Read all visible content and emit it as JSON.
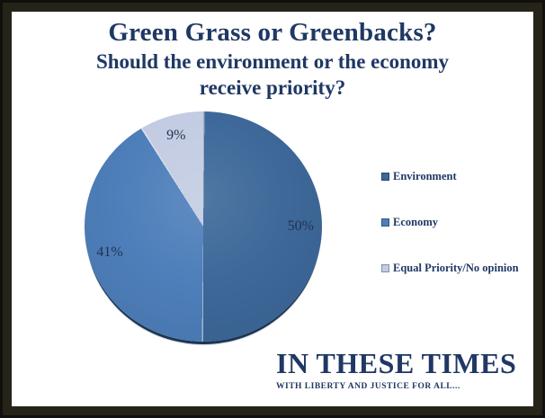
{
  "title": {
    "main": "Green Grass or Greenbacks?",
    "sub_line1": "Should the environment or the economy",
    "sub_line2": "receive priority?"
  },
  "chart_data": {
    "type": "pie",
    "title": "Green Grass or Greenbacks? Should the environment or the economy receive priority?",
    "start_angle_deg": 0,
    "direction": "clockwise",
    "legend_position": "right",
    "label_color": "#1F3350",
    "slices": [
      {
        "name": "Environment",
        "value": 50,
        "label": "50%",
        "color": "#3D6899",
        "swatch_border": "#24466C"
      },
      {
        "name": "Economy",
        "value": 41,
        "label": "41%",
        "color": "#4E7FBA",
        "swatch_border": "#2C5680"
      },
      {
        "name": "Equal Priority/No opinion",
        "value": 9,
        "label": "9%",
        "color": "#C3CCE2",
        "swatch_border": "#8491AF"
      }
    ]
  },
  "branding": {
    "name": "IN THESE TIMES",
    "tagline": "WITH LIBERTY AND JUSTICE FOR ALL..."
  },
  "colors": {
    "navy_text": "#1F3864",
    "pie_label": "#1F3350",
    "frame_outer": "#11100A",
    "frame_inner": "#262419",
    "background": "#FFFFFF",
    "pie_bottom_rim": "#1C3550"
  }
}
